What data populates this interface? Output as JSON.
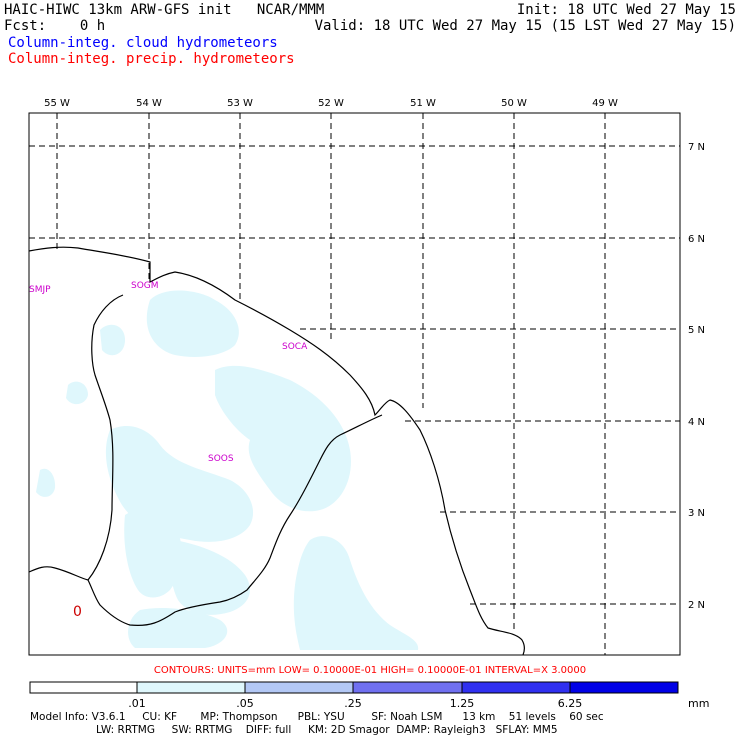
{
  "header": {
    "left_line1": "HAIC-HIWC 13km ARW-GFS init   NCAR/MMM",
    "left_line2": "Fcst:    0 h",
    "right_line1": "Init: 18 UTC Wed 27 May 15",
    "right_line2": "Valid: 18 UTC Wed 27 May 15 (15 LST Wed 27 May 15)",
    "legend_cloud": "Column-integ. cloud hydrometeors",
    "legend_precip": "Column-integ. precip. hydrometeors"
  },
  "colors": {
    "cloud_legend": "#0000ff",
    "precip_legend": "#ff0000",
    "shade_1": "#dff7fc",
    "shade_2": "#b3c8f5",
    "shade_3": "#7070f0",
    "shade_4": "#3030f0",
    "shade_5": "#0000e6",
    "station_label": "#cc00cc",
    "contour_text": "#ff0000"
  },
  "map": {
    "lon_labels": [
      "55 W",
      "54 W",
      "53 W",
      "52 W",
      "51 W",
      "50 W",
      "49 W"
    ],
    "lat_labels": [
      "7 N",
      "6 N",
      "5 N",
      "4 N",
      "3 N",
      "2 N"
    ],
    "stations": [
      "SMJP",
      "SOGM",
      "SOCA",
      "SOOS"
    ],
    "contour_marker": "0"
  },
  "contours_line": "CONTOURS:  UNITS=mm   LOW= 0.10000E-01   HIGH= 0.10000E-01   INTERVAL=X   3.0000",
  "colorbar": {
    "labels": [
      ".01",
      ".05",
      ".25",
      "1.25",
      "6.25"
    ],
    "unit": "mm"
  },
  "model_info": {
    "line1": "Model Info: V3.6.1     CU: KF       MP: Thompson      PBL: YSU        SF: Noah LSM      13 km    51 levels    60 sec",
    "line2": "LW: RRTMG     SW: RRTMG    DIFF: full     KM: 2D Smagor  DAMP: Rayleigh3   SFLAY: MM5"
  }
}
